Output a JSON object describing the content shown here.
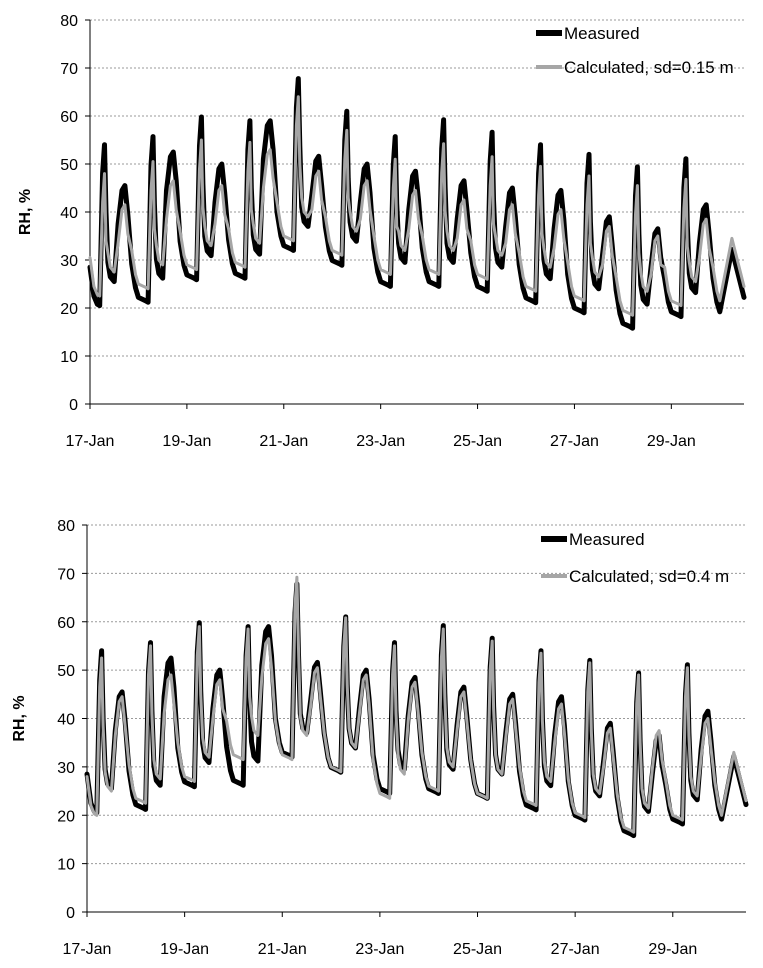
{
  "chart_data": [
    {
      "type": "line",
      "ylabel": "RH, %",
      "ylim": [
        0,
        80
      ],
      "yticks": [
        "0",
        "10",
        "20",
        "30",
        "40",
        "50",
        "60",
        "70",
        "80"
      ],
      "xlim": [
        "17-Jan",
        "30-Jan 12:00"
      ],
      "xticks": [
        "17-Jan",
        "19-Jan",
        "21-Jan",
        "23-Jan",
        "25-Jan",
        "27-Jan",
        "29-Jan"
      ],
      "grid": true,
      "legend_position": "top-right",
      "series": [
        {
          "name": "Measured",
          "color": "#000000",
          "daily_peaks": [
            [
              "17-Jan",
              54
            ],
            [
              "18-Jan",
              55.7
            ],
            [
              "19-Jan",
              59.8
            ],
            [
              "20-Jan",
              59
            ],
            [
              "21-Jan",
              67.8
            ],
            [
              "22-Jan",
              61
            ],
            [
              "23-Jan",
              55.7
            ],
            [
              "24-Jan",
              59.2
            ],
            [
              "25-Jan",
              56.6
            ],
            [
              "26-Jan",
              54
            ],
            [
              "27-Jan",
              52
            ],
            [
              "28-Jan",
              49.4
            ],
            [
              "29-Jan",
              51.1
            ]
          ],
          "daily_minima": [
            [
              "17-Jan",
              20.5
            ],
            [
              "18-Jan",
              21.2
            ],
            [
              "19-Jan",
              25.9
            ],
            [
              "20-Jan",
              26.2
            ],
            [
              "21-Jan",
              32
            ],
            [
              "22-Jan",
              28.9
            ],
            [
              "23-Jan",
              24.5
            ],
            [
              "24-Jan",
              24.5
            ],
            [
              "25-Jan",
              23.5
            ],
            [
              "26-Jan",
              21.1
            ],
            [
              "27-Jan",
              19
            ],
            [
              "28-Jan",
              15.8
            ],
            [
              "29-Jan",
              18.2
            ]
          ],
          "evening_shoulders": [
            [
              "17-Jan",
              45.5
            ],
            [
              "18-Jan",
              52.5
            ],
            [
              "19-Jan",
              50
            ],
            [
              "20-Jan",
              59
            ],
            [
              "21-Jan",
              51.6
            ],
            [
              "22-Jan",
              50
            ],
            [
              "23-Jan",
              48.5
            ],
            [
              "24-Jan",
              46.5
            ],
            [
              "25-Jan",
              45
            ],
            [
              "26-Jan",
              44.5
            ],
            [
              "27-Jan",
              39
            ],
            [
              "28-Jan",
              36.5
            ],
            [
              "29-Jan",
              41.5
            ]
          ]
        },
        {
          "name": "Calculated, sd=0.15 m",
          "color": "#a6a6a6",
          "daily_peaks": [
            [
              "17-Jan",
              48
            ],
            [
              "18-Jan",
              50.5
            ],
            [
              "19-Jan",
              55
            ],
            [
              "20-Jan",
              54.5
            ],
            [
              "21-Jan",
              64
            ],
            [
              "22-Jan",
              57
            ],
            [
              "23-Jan",
              51
            ],
            [
              "24-Jan",
              54.2
            ],
            [
              "25-Jan",
              51.5
            ],
            [
              "26-Jan",
              49.5
            ],
            [
              "27-Jan",
              47.5
            ],
            [
              "28-Jan",
              45.5
            ],
            [
              "29-Jan",
              46.8
            ]
          ],
          "daily_minima": [
            [
              "17-Jan",
              22.5
            ],
            [
              "18-Jan",
              24
            ],
            [
              "19-Jan",
              28
            ],
            [
              "20-Jan",
              28.5
            ],
            [
              "21-Jan",
              34
            ],
            [
              "22-Jan",
              31
            ],
            [
              "23-Jan",
              27
            ],
            [
              "24-Jan",
              27
            ],
            [
              "25-Jan",
              26
            ],
            [
              "26-Jan",
              23.5
            ],
            [
              "27-Jan",
              21.5
            ],
            [
              "28-Jan",
              18.5
            ],
            [
              "29-Jan",
              20.5
            ]
          ],
          "evening_shoulders": [
            [
              "17-Jan",
              41.5
            ],
            [
              "18-Jan",
              46.5
            ],
            [
              "19-Jan",
              45.5
            ],
            [
              "20-Jan",
              53
            ],
            [
              "21-Jan",
              48.5
            ],
            [
              "22-Jan",
              46.5
            ],
            [
              "23-Jan",
              44.5
            ],
            [
              "24-Jan",
              42.5
            ],
            [
              "25-Jan",
              41.5
            ],
            [
              "26-Jan",
              40.5
            ],
            [
              "27-Jan",
              37
            ],
            [
              "28-Jan",
              35
            ],
            [
              "29-Jan",
              38.5
            ]
          ]
        }
      ]
    },
    {
      "type": "line",
      "ylabel": "RH, %",
      "ylim": [
        0,
        80
      ],
      "yticks": [
        "0",
        "10",
        "20",
        "30",
        "40",
        "50",
        "60",
        "70",
        "80"
      ],
      "xlim": [
        "17-Jan",
        "30-Jan 12:00"
      ],
      "xticks": [
        "17-Jan",
        "19-Jan",
        "21-Jan",
        "23-Jan",
        "25-Jan",
        "27-Jan",
        "29-Jan"
      ],
      "grid": true,
      "legend_position": "top-right",
      "series": [
        {
          "name": "Measured",
          "color": "#000000",
          "daily_peaks": [
            [
              "17-Jan",
              54
            ],
            [
              "18-Jan",
              55.7
            ],
            [
              "19-Jan",
              59.8
            ],
            [
              "20-Jan",
              59
            ],
            [
              "21-Jan",
              67.8
            ],
            [
              "22-Jan",
              61
            ],
            [
              "23-Jan",
              55.7
            ],
            [
              "24-Jan",
              59.2
            ],
            [
              "25-Jan",
              56.6
            ],
            [
              "26-Jan",
              54
            ],
            [
              "27-Jan",
              52
            ],
            [
              "28-Jan",
              49.4
            ],
            [
              "29-Jan",
              51.1
            ]
          ],
          "daily_minima": [
            [
              "17-Jan",
              20.5
            ],
            [
              "18-Jan",
              21.2
            ],
            [
              "19-Jan",
              25.9
            ],
            [
              "20-Jan",
              26.2
            ],
            [
              "21-Jan",
              32
            ],
            [
              "22-Jan",
              28.9
            ],
            [
              "23-Jan",
              24.5
            ],
            [
              "24-Jan",
              24.5
            ],
            [
              "25-Jan",
              23.5
            ],
            [
              "26-Jan",
              21.1
            ],
            [
              "27-Jan",
              19
            ],
            [
              "28-Jan",
              15.8
            ],
            [
              "29-Jan",
              18.2
            ]
          ],
          "evening_shoulders": [
            [
              "17-Jan",
              45.5
            ],
            [
              "18-Jan",
              52.5
            ],
            [
              "19-Jan",
              50
            ],
            [
              "20-Jan",
              59
            ],
            [
              "21-Jan",
              51.6
            ],
            [
              "22-Jan",
              50
            ],
            [
              "23-Jan",
              48.5
            ],
            [
              "24-Jan",
              46.5
            ],
            [
              "25-Jan",
              45
            ],
            [
              "26-Jan",
              44.5
            ],
            [
              "27-Jan",
              39
            ],
            [
              "28-Jan",
              36.5
            ],
            [
              "29-Jan",
              41.5
            ]
          ]
        },
        {
          "name": "Calculated, sd=0.4 m",
          "color": "#a6a6a6",
          "daily_peaks": [
            [
              "17-Jan",
              52.5
            ],
            [
              "18-Jan",
              55
            ],
            [
              "19-Jan",
              59
            ],
            [
              "20-Jan",
              58.5
            ],
            [
              "21-Jan",
              69.2
            ],
            [
              "22-Jan",
              60.8
            ],
            [
              "23-Jan",
              55
            ],
            [
              "24-Jan",
              58.5
            ],
            [
              "25-Jan",
              56
            ],
            [
              "26-Jan",
              53.5
            ],
            [
              "27-Jan",
              51.5
            ],
            [
              "28-Jan",
              49
            ],
            [
              "29-Jan",
              50.5
            ]
          ],
          "daily_minima": [
            [
              "17-Jan",
              20
            ],
            [
              "18-Jan",
              22.5
            ],
            [
              "19-Jan",
              27
            ],
            [
              "20-Jan",
              31.5
            ],
            [
              "21-Jan",
              31.5
            ],
            [
              "22-Jan",
              29
            ],
            [
              "23-Jan",
              23.5
            ],
            [
              "24-Jan",
              25
            ],
            [
              "25-Jan",
              23.5
            ],
            [
              "26-Jan",
              22
            ],
            [
              "27-Jan",
              19.5
            ],
            [
              "28-Jan",
              16.5
            ],
            [
              "29-Jan",
              19
            ]
          ],
          "evening_shoulders": [
            [
              "17-Jan",
              44.5
            ],
            [
              "18-Jan",
              49
            ],
            [
              "19-Jan",
              48
            ],
            [
              "20-Jan",
              56.5
            ],
            [
              "21-Jan",
              50.5
            ],
            [
              "22-Jan",
              49
            ],
            [
              "23-Jan",
              47.5
            ],
            [
              "24-Jan",
              45.5
            ],
            [
              "25-Jan",
              44
            ],
            [
              "26-Jan",
              43
            ],
            [
              "27-Jan",
              38
            ],
            [
              "28-Jan",
              37.5
            ],
            [
              "29-Jan",
              40
            ]
          ]
        }
      ]
    }
  ]
}
